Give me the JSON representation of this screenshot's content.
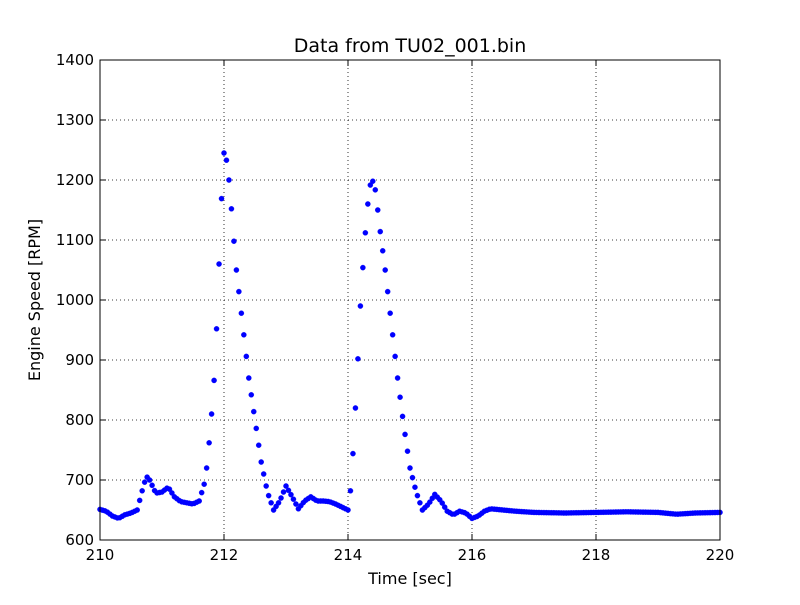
{
  "chart_data": {
    "type": "scatter",
    "title": "Data from TU02_001.bin",
    "xlabel": "Time [sec]",
    "ylabel": "Engine Speed [RPM]",
    "xlim": [
      210,
      220
    ],
    "ylim": [
      600,
      1400
    ],
    "x_ticks": [
      "210",
      "212",
      "214",
      "216",
      "218",
      "220"
    ],
    "y_ticks": [
      "600",
      "700",
      "800",
      "900",
      "1000",
      "1100",
      "1200",
      "1300",
      "1400"
    ],
    "grid": true,
    "grid_style": "dotted",
    "marker_color": "#0000ff",
    "series": [
      {
        "points": [
          [
            210.0,
            651
          ],
          [
            210.1,
            648
          ],
          [
            210.2,
            640
          ],
          [
            210.3,
            636
          ],
          [
            210.4,
            642
          ],
          [
            210.5,
            645
          ],
          [
            210.6,
            650
          ],
          [
            210.7,
            690
          ],
          [
            210.75,
            706
          ],
          [
            210.8,
            700
          ],
          [
            210.9,
            678
          ],
          [
            211.0,
            680
          ],
          [
            211.1,
            688
          ],
          [
            211.2,
            672
          ],
          [
            211.3,
            664
          ],
          [
            211.5,
            660
          ],
          [
            211.6,
            665
          ],
          [
            211.7,
            700
          ],
          [
            211.75,
            750
          ],
          [
            211.8,
            810
          ],
          [
            211.85,
            880
          ],
          [
            211.9,
            1000
          ],
          [
            211.95,
            1150
          ],
          [
            212.0,
            1245
          ],
          [
            212.05,
            1230
          ],
          [
            212.1,
            1180
          ],
          [
            212.15,
            1110
          ],
          [
            212.2,
            1050
          ],
          [
            212.3,
            960
          ],
          [
            212.4,
            870
          ],
          [
            212.5,
            800
          ],
          [
            212.6,
            730
          ],
          [
            212.7,
            680
          ],
          [
            212.8,
            650
          ],
          [
            212.9,
            665
          ],
          [
            213.0,
            690
          ],
          [
            213.1,
            672
          ],
          [
            213.2,
            652
          ],
          [
            213.3,
            665
          ],
          [
            213.4,
            672
          ],
          [
            213.5,
            665
          ],
          [
            213.6,
            665
          ],
          [
            213.7,
            664
          ],
          [
            213.8,
            660
          ],
          [
            213.9,
            655
          ],
          [
            214.0,
            650
          ],
          [
            214.05,
            690
          ],
          [
            214.1,
            780
          ],
          [
            214.15,
            880
          ],
          [
            214.2,
            990
          ],
          [
            214.25,
            1070
          ],
          [
            214.3,
            1140
          ],
          [
            214.35,
            1190
          ],
          [
            214.4,
            1198
          ],
          [
            214.45,
            1180
          ],
          [
            214.5,
            1130
          ],
          [
            214.6,
            1050
          ],
          [
            214.7,
            960
          ],
          [
            214.8,
            870
          ],
          [
            214.9,
            790
          ],
          [
            215.0,
            720
          ],
          [
            215.1,
            680
          ],
          [
            215.2,
            650
          ],
          [
            215.3,
            660
          ],
          [
            215.4,
            676
          ],
          [
            215.5,
            665
          ],
          [
            215.6,
            648
          ],
          [
            215.7,
            642
          ],
          [
            215.8,
            648
          ],
          [
            215.9,
            645
          ],
          [
            216.0,
            636
          ],
          [
            216.1,
            640
          ],
          [
            216.2,
            648
          ],
          [
            216.3,
            652
          ],
          [
            216.5,
            650
          ],
          [
            216.7,
            648
          ],
          [
            217.0,
            646
          ],
          [
            217.5,
            645
          ],
          [
            218.0,
            646
          ],
          [
            218.5,
            647
          ],
          [
            219.0,
            646
          ],
          [
            219.3,
            643
          ],
          [
            219.6,
            645
          ],
          [
            220.0,
            646
          ]
        ]
      }
    ]
  }
}
